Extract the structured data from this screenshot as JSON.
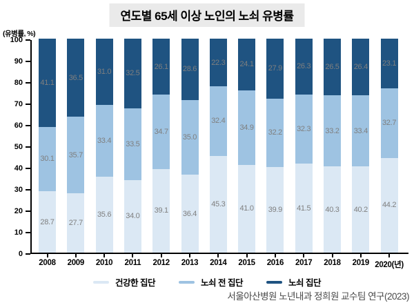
{
  "title": "연도별 65세 이상 노인의 노쇠 유병률",
  "y_axis_unit": "(유병률, %)",
  "x_axis_year_suffix": "(년)",
  "source": "서울아산병원 노년내과 정희원 교수팀 연구(2023)",
  "colors": {
    "healthy": "#dbe8f4",
    "prefrail": "#9ec3e2",
    "frail": "#1f5381",
    "value_label": "#7f7f7f",
    "title_bg": "#eaeaea",
    "axis": "#000000",
    "source_text": "#484848"
  },
  "legend": [
    {
      "label": "건강한 집단",
      "color_key": "healthy"
    },
    {
      "label": "노쇠 전 집단",
      "color_key": "prefrail"
    },
    {
      "label": "노쇠 집단",
      "color_key": "frail"
    }
  ],
  "chart_data": {
    "type": "bar",
    "stacked": true,
    "title": "연도별 65세 이상 노인의 노쇠 유병률",
    "ylabel": "(유병률, %)",
    "xlabel": "(년)",
    "ylim": [
      0,
      100
    ],
    "y_ticks": [
      0,
      10,
      20,
      30,
      40,
      50,
      60,
      70,
      80,
      90,
      100
    ],
    "grid": false,
    "legend_position": "bottom",
    "categories": [
      "2008",
      "2009",
      "2010",
      "2011",
      "2012",
      "2013",
      "2014",
      "2015",
      "2016",
      "2017",
      "2018",
      "2019",
      "2020"
    ],
    "series": [
      {
        "name": "건강한 집단",
        "color_key": "healthy",
        "values": [
          28.7,
          27.7,
          35.6,
          34.0,
          39.1,
          36.4,
          45.3,
          41.0,
          39.9,
          41.5,
          40.3,
          40.2,
          44.2
        ]
      },
      {
        "name": "노쇠 전 집단",
        "color_key": "prefrail",
        "values": [
          30.1,
          35.7,
          33.4,
          33.5,
          34.7,
          35.0,
          32.4,
          34.9,
          32.2,
          32.3,
          33.2,
          33.4,
          32.7
        ]
      },
      {
        "name": "노쇠 집단",
        "color_key": "frail",
        "values": [
          41.1,
          36.5,
          31.0,
          32.5,
          26.1,
          28.6,
          22.3,
          24.1,
          27.9,
          26.3,
          26.5,
          26.4,
          23.1
        ]
      }
    ]
  }
}
